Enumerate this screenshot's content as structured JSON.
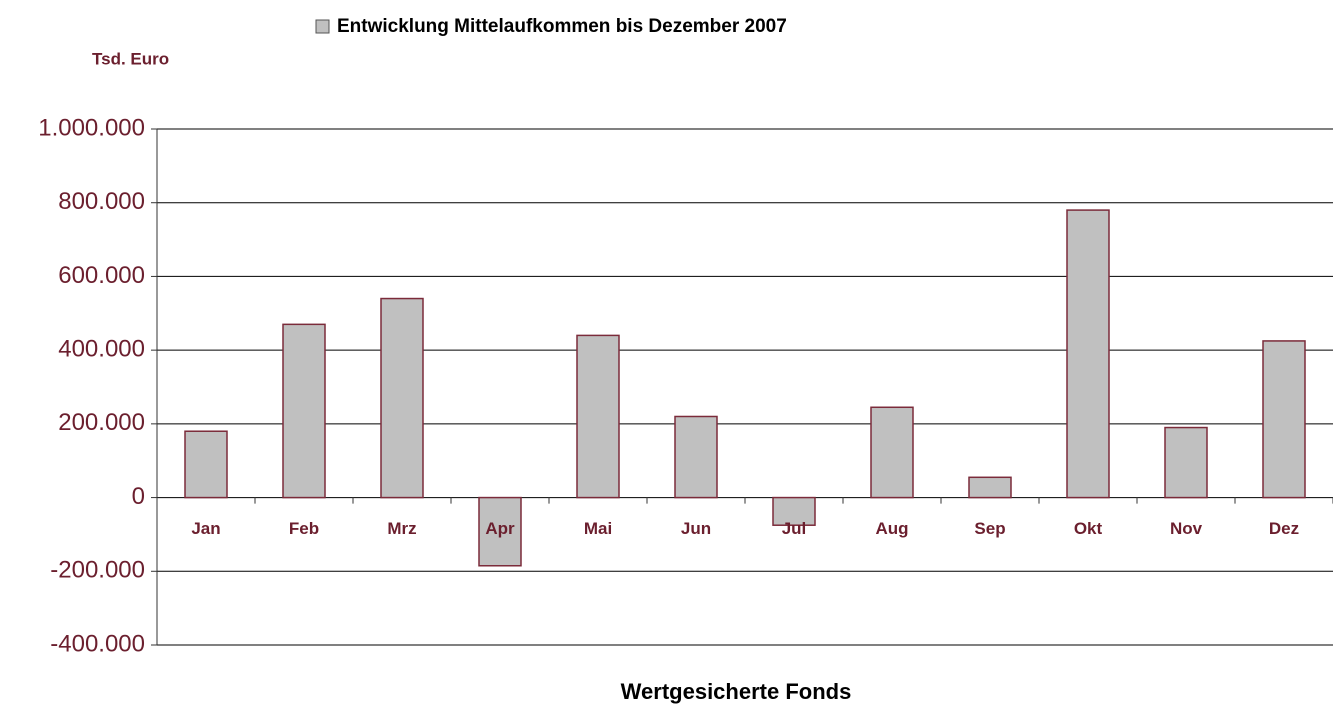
{
  "chart_data": {
    "type": "bar",
    "y_axis_label": "Tsd. Euro",
    "x_axis_label": "Wertgesicherte Fonds",
    "categories": [
      "Jan",
      "Feb",
      "Mrz",
      "Apr",
      "Mai",
      "Jun",
      "Jul",
      "Aug",
      "Sep",
      "Okt",
      "Nov",
      "Dez"
    ],
    "series": [
      {
        "name": "Entwicklung Mittelaufkommen bis Dezember 2007",
        "color": "#c0c0c0",
        "values": [
          180000,
          470000,
          540000,
          -185000,
          440000,
          220000,
          -75000,
          245000,
          55000,
          780000,
          190000,
          425000
        ]
      }
    ],
    "ylim": [
      -400000,
      1000000
    ],
    "yticks": [
      {
        "value": -400000,
        "label": "-400.000"
      },
      {
        "value": -200000,
        "label": "-200.000"
      },
      0,
      {
        "value": 200000,
        "label": "200.000"
      },
      {
        "value": 400000,
        "label": "400.000"
      },
      {
        "value": 600000,
        "label": "600.000"
      },
      {
        "value": 800000,
        "label": "800.000"
      },
      {
        "value": 1000000,
        "label": "1.000.000"
      }
    ],
    "grid": true,
    "legend": "top"
  }
}
